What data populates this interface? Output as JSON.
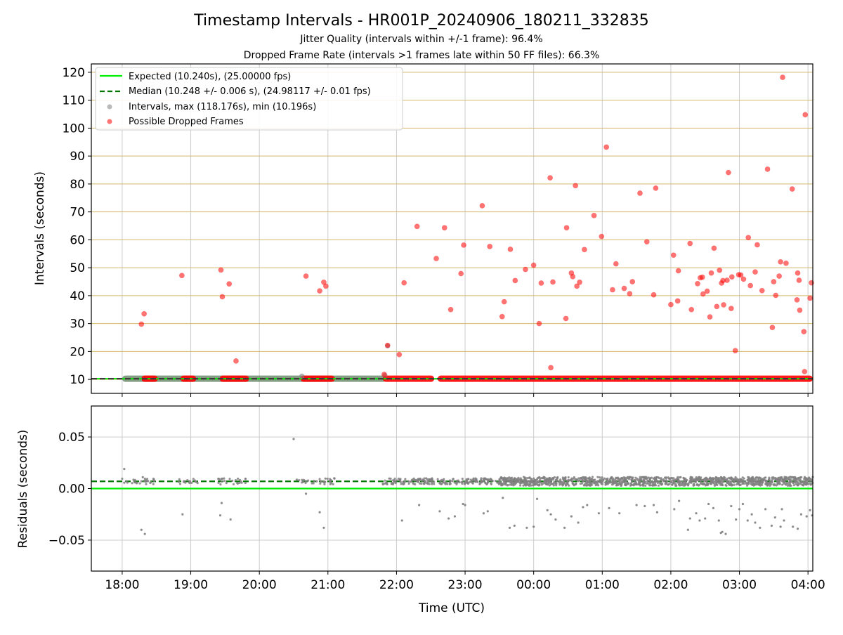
{
  "header": {
    "title": "Timestamp Intervals - HR001P_20240906_180211_332835",
    "subtitle1": "Jitter Quality (intervals within +/-1 frame): 96.4%",
    "subtitle2": "Dropped Frame Rate (intervals >1 frames late within 50 FF files): 66.3%"
  },
  "colors": {
    "expected": "#00ee00",
    "median": "#007700",
    "intervals": "#808080",
    "dropped": "#ff0000",
    "hgrid_top": "#d4b96a",
    "grid": "#cccccc"
  },
  "chart_data": [
    {
      "type": "scatter",
      "panel": "top",
      "ylabel": "Intervals (seconds)",
      "ylim": [
        5,
        123
      ],
      "yticks": [
        10,
        20,
        30,
        40,
        50,
        60,
        70,
        80,
        90,
        100,
        110,
        120
      ],
      "ytick_labels": [
        "10",
        "20",
        "30",
        "40",
        "50",
        "60",
        "70",
        "80",
        "90",
        "100",
        "110",
        "120"
      ],
      "xlim_hours": [
        17.55,
        28.07
      ],
      "grid": true,
      "legend": {
        "placement": "upper-left",
        "entries": [
          "Expected (10.240s), (25.00000 fps)",
          "Median (10.248 +/- 0.006 s), (24.98117 +/- 0.01 fps)",
          "Intervals, max (118.176s), min (10.196s)",
          "Possible Dropped Frames"
        ]
      },
      "expected": 10.24,
      "median": 10.248,
      "baseline_segments": [
        {
          "kind": "gray",
          "from": 18.0,
          "to": 21.85
        },
        {
          "kind": "red",
          "from": 18.28,
          "to": 18.52
        },
        {
          "kind": "red",
          "from": 18.85,
          "to": 19.08
        },
        {
          "kind": "red",
          "from": 19.42,
          "to": 19.85
        },
        {
          "kind": "red",
          "from": 20.6,
          "to": 21.1
        },
        {
          "kind": "red",
          "from": 21.8,
          "to": 22.55
        },
        {
          "kind": "red",
          "from": 22.6,
          "to": 28.07
        }
      ],
      "series_intervals_extra": [
        [
          20.62,
          11.2
        ],
        [
          21.83,
          11.5
        ],
        [
          21.87,
          22.0
        ]
      ],
      "series_dropped": [
        [
          18.28,
          29.8
        ],
        [
          18.32,
          33.5
        ],
        [
          18.87,
          47.2
        ],
        [
          19.44,
          49.2
        ],
        [
          19.46,
          39.6
        ],
        [
          19.56,
          44.2
        ],
        [
          19.66,
          16.6
        ],
        [
          20.68,
          47.0
        ],
        [
          20.88,
          41.7
        ],
        [
          20.94,
          44.8
        ],
        [
          20.97,
          43.4
        ],
        [
          21.82,
          11.8
        ],
        [
          21.87,
          22.2
        ],
        [
          22.04,
          18.9
        ],
        [
          22.11,
          44.6
        ],
        [
          22.3,
          64.8
        ],
        [
          22.58,
          53.3
        ],
        [
          22.7,
          64.3
        ],
        [
          22.79,
          35.0
        ],
        [
          22.94,
          47.9
        ],
        [
          22.98,
          58.1
        ],
        [
          23.25,
          72.2
        ],
        [
          23.36,
          57.6
        ],
        [
          23.54,
          32.5
        ],
        [
          23.57,
          37.8
        ],
        [
          23.66,
          56.6
        ],
        [
          23.73,
          45.4
        ],
        [
          23.88,
          49.4
        ],
        [
          24.0,
          50.9
        ],
        [
          24.08,
          30.0
        ],
        [
          24.11,
          44.5
        ],
        [
          24.24,
          82.2
        ],
        [
          24.25,
          14.2
        ],
        [
          24.28,
          44.9
        ],
        [
          24.47,
          31.8
        ],
        [
          24.48,
          64.3
        ],
        [
          24.55,
          48.1
        ],
        [
          24.57,
          46.8
        ],
        [
          24.61,
          79.4
        ],
        [
          24.63,
          43.4
        ],
        [
          24.67,
          44.8
        ],
        [
          24.74,
          56.5
        ],
        [
          24.88,
          68.7
        ],
        [
          24.99,
          61.2
        ],
        [
          25.06,
          93.2
        ],
        [
          25.15,
          42.1
        ],
        [
          25.2,
          51.4
        ],
        [
          25.32,
          42.6
        ],
        [
          25.4,
          40.7
        ],
        [
          25.44,
          45.0
        ],
        [
          25.55,
          76.7
        ],
        [
          25.65,
          59.3
        ],
        [
          25.75,
          40.3
        ],
        [
          25.78,
          78.5
        ],
        [
          26.0,
          36.8
        ],
        [
          26.04,
          54.5
        ],
        [
          26.1,
          38.1
        ],
        [
          26.11,
          48.9
        ],
        [
          26.28,
          58.7
        ],
        [
          26.3,
          35.0
        ],
        [
          26.39,
          44.3
        ],
        [
          26.43,
          46.4
        ],
        [
          26.46,
          46.6
        ],
        [
          26.47,
          40.6
        ],
        [
          26.53,
          41.6
        ],
        [
          26.57,
          32.4
        ],
        [
          26.59,
          48.1
        ],
        [
          26.63,
          57.0
        ],
        [
          26.67,
          36.1
        ],
        [
          26.71,
          49.1
        ],
        [
          26.74,
          44.5
        ],
        [
          26.76,
          45.4
        ],
        [
          26.77,
          36.7
        ],
        [
          26.82,
          45.5
        ],
        [
          26.84,
          84.1
        ],
        [
          26.88,
          35.4
        ],
        [
          26.89,
          46.7
        ],
        [
          26.94,
          20.3
        ],
        [
          26.99,
          47.5
        ],
        [
          27.02,
          47.4
        ],
        [
          27.06,
          45.9
        ],
        [
          27.13,
          60.8
        ],
        [
          27.16,
          43.6
        ],
        [
          27.23,
          48.5
        ],
        [
          27.26,
          58.2
        ],
        [
          27.33,
          41.8
        ],
        [
          27.41,
          85.3
        ],
        [
          27.48,
          28.6
        ],
        [
          27.5,
          45.0
        ],
        [
          27.53,
          40.1
        ],
        [
          27.58,
          47.0
        ],
        [
          27.6,
          52.1
        ],
        [
          27.63,
          118.2
        ],
        [
          27.68,
          51.6
        ],
        [
          27.77,
          78.2
        ],
        [
          27.84,
          38.5
        ],
        [
          27.85,
          48.1
        ],
        [
          27.87,
          45.5
        ],
        [
          27.88,
          34.8
        ],
        [
          27.94,
          27.1
        ],
        [
          27.95,
          12.8
        ],
        [
          27.96,
          104.8
        ],
        [
          28.03,
          39.1
        ],
        [
          28.05,
          44.6
        ]
      ]
    },
    {
      "type": "scatter",
      "panel": "bottom",
      "ylabel": "Residuals (seconds)",
      "xlabel": "Time (UTC)",
      "ylim": [
        -0.08,
        0.08
      ],
      "yticks": [
        0.05,
        0.0,
        -0.05
      ],
      "ytick_labels": [
        "0.05",
        "0.00",
        "−0.05"
      ],
      "xlim_hours": [
        17.55,
        28.07
      ],
      "xticks_hours": [
        18,
        19,
        20,
        21,
        22,
        23,
        24,
        25,
        26,
        27,
        28
      ],
      "xtick_labels": [
        "18:00",
        "19:00",
        "20:00",
        "21:00",
        "22:00",
        "23:00",
        "00:00",
        "01:00",
        "02:00",
        "03:00",
        "04:00"
      ],
      "grid": true,
      "expected": 0.0,
      "median": 0.007,
      "cluster_ranges": [
        {
          "from": 18.0,
          "to": 18.5,
          "density": "sparse"
        },
        {
          "from": 18.8,
          "to": 19.1,
          "density": "sparse"
        },
        {
          "from": 19.4,
          "to": 19.85,
          "density": "sparse"
        },
        {
          "from": 20.5,
          "to": 21.1,
          "density": "sparse"
        },
        {
          "from": 21.8,
          "to": 22.55,
          "density": "medium"
        },
        {
          "from": 22.6,
          "to": 23.5,
          "density": "medium"
        },
        {
          "from": 23.5,
          "to": 28.07,
          "density": "dense"
        }
      ],
      "outliers": [
        [
          18.03,
          0.019
        ],
        [
          18.28,
          -0.04
        ],
        [
          18.33,
          -0.044
        ],
        [
          18.3,
          0.011
        ],
        [
          18.88,
          -0.025
        ],
        [
          19.43,
          -0.026
        ],
        [
          19.45,
          -0.014
        ],
        [
          19.58,
          -0.03
        ],
        [
          20.5,
          0.048
        ],
        [
          20.68,
          -0.005
        ],
        [
          20.88,
          -0.023
        ],
        [
          20.94,
          -0.038
        ],
        [
          22.08,
          -0.031
        ],
        [
          22.33,
          -0.016
        ],
        [
          22.63,
          -0.022
        ],
        [
          22.76,
          -0.029
        ],
        [
          22.85,
          -0.027
        ],
        [
          22.97,
          -0.015
        ],
        [
          23.0,
          -0.016
        ],
        [
          23.27,
          -0.024
        ],
        [
          23.33,
          -0.022
        ],
        [
          23.55,
          -0.009
        ],
        [
          23.65,
          -0.038
        ],
        [
          23.72,
          -0.036
        ],
        [
          23.9,
          -0.038
        ],
        [
          24.0,
          -0.037
        ],
        [
          24.05,
          -0.01
        ],
        [
          24.2,
          -0.021
        ],
        [
          24.25,
          -0.025
        ],
        [
          24.32,
          -0.03
        ],
        [
          24.45,
          -0.038
        ],
        [
          24.55,
          -0.027
        ],
        [
          24.65,
          -0.033
        ],
        [
          24.72,
          -0.018
        ],
        [
          24.78,
          -0.016
        ],
        [
          24.95,
          -0.024
        ],
        [
          25.1,
          -0.019
        ],
        [
          25.25,
          -0.024
        ],
        [
          25.5,
          -0.016
        ],
        [
          25.62,
          -0.017
        ],
        [
          25.75,
          -0.016
        ],
        [
          25.8,
          -0.023
        ],
        [
          26.05,
          -0.02
        ],
        [
          26.12,
          -0.012
        ],
        [
          26.28,
          -0.029
        ],
        [
          26.37,
          -0.024
        ],
        [
          26.42,
          -0.031
        ],
        [
          26.5,
          -0.029
        ],
        [
          26.55,
          -0.015
        ],
        [
          26.62,
          -0.019
        ],
        [
          26.7,
          -0.031
        ],
        [
          26.73,
          -0.043
        ],
        [
          26.75,
          -0.042
        ],
        [
          26.8,
          -0.044
        ],
        [
          26.88,
          -0.017
        ],
        [
          26.95,
          -0.03
        ],
        [
          27.0,
          -0.02
        ],
        [
          27.05,
          -0.015
        ],
        [
          27.12,
          -0.031
        ],
        [
          27.18,
          -0.025
        ],
        [
          27.23,
          -0.033
        ],
        [
          27.38,
          -0.02
        ],
        [
          27.47,
          -0.036
        ],
        [
          27.52,
          -0.028
        ],
        [
          27.6,
          -0.037
        ],
        [
          27.65,
          -0.031
        ],
        [
          27.78,
          -0.037
        ],
        [
          27.85,
          -0.039
        ],
        [
          27.9,
          -0.025
        ],
        [
          27.98,
          -0.027
        ],
        [
          28.03,
          -0.021
        ],
        [
          28.06,
          -0.026
        ],
        [
          27.3,
          -0.038
        ],
        [
          27.62,
          -0.02
        ],
        [
          26.25,
          -0.04
        ]
      ]
    }
  ]
}
